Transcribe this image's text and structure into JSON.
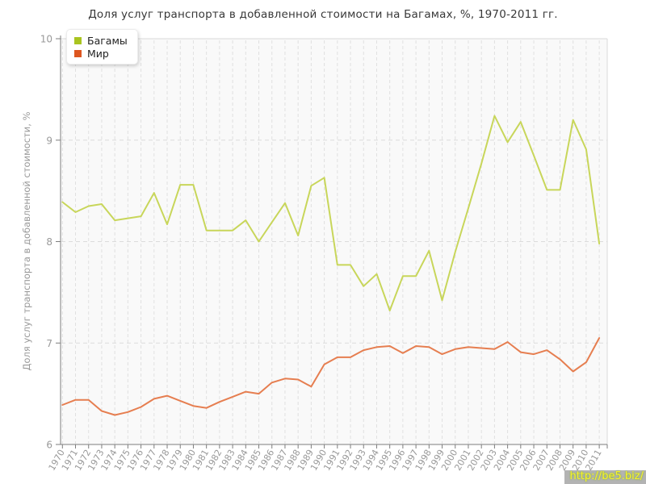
{
  "watermark": {
    "text": "http://be5.biz/"
  },
  "chart_data": {
    "type": "line",
    "title": "Доля услуг транспорта в добавленной стоимости на Багамах, %, 1970-2011 гг.",
    "xlabel": "",
    "ylabel": "Доля услуг транспорта в добавленной стоимости, %",
    "ylim": [
      6,
      10
    ],
    "yticks": [
      6,
      7,
      8,
      9,
      10
    ],
    "grid": "dashed",
    "legend_position": "top-left",
    "x": [
      1970,
      1971,
      1972,
      1973,
      1974,
      1975,
      1976,
      1977,
      1978,
      1979,
      1980,
      1981,
      1982,
      1983,
      1984,
      1985,
      1986,
      1987,
      1988,
      1989,
      1990,
      1991,
      1992,
      1993,
      1994,
      1995,
      1996,
      1997,
      1998,
      1999,
      2000,
      2001,
      2002,
      2003,
      2004,
      2005,
      2006,
      2007,
      2008,
      2009,
      2010,
      2011
    ],
    "series": [
      {
        "name": "Багамы",
        "swatch_color": "#a9c420",
        "line_color": "#c8d65a",
        "values": [
          8.39,
          8.29,
          8.35,
          8.37,
          8.21,
          8.23,
          8.25,
          8.48,
          8.17,
          8.56,
          8.56,
          8.11,
          8.11,
          8.11,
          8.21,
          8.0,
          8.19,
          8.38,
          8.06,
          8.55,
          8.63,
          7.77,
          7.77,
          7.56,
          7.68,
          7.32,
          7.66,
          7.66,
          7.91,
          7.42,
          7.9,
          8.33,
          8.77,
          9.24,
          8.98,
          9.18,
          8.85,
          8.51,
          8.51,
          9.2,
          8.91,
          7.98
        ]
      },
      {
        "name": "Мир",
        "swatch_color": "#dd5620",
        "line_color": "#e67e50",
        "values": [
          6.39,
          6.44,
          6.44,
          6.33,
          6.29,
          6.32,
          6.37,
          6.45,
          6.48,
          6.43,
          6.38,
          6.36,
          6.42,
          6.47,
          6.52,
          6.5,
          6.61,
          6.65,
          6.64,
          6.57,
          6.79,
          6.86,
          6.86,
          6.93,
          6.96,
          6.97,
          6.9,
          6.97,
          6.96,
          6.89,
          6.94,
          6.96,
          6.95,
          6.94,
          7.01,
          6.91,
          6.89,
          6.93,
          6.84,
          6.72,
          6.81,
          7.05
        ]
      }
    ]
  }
}
